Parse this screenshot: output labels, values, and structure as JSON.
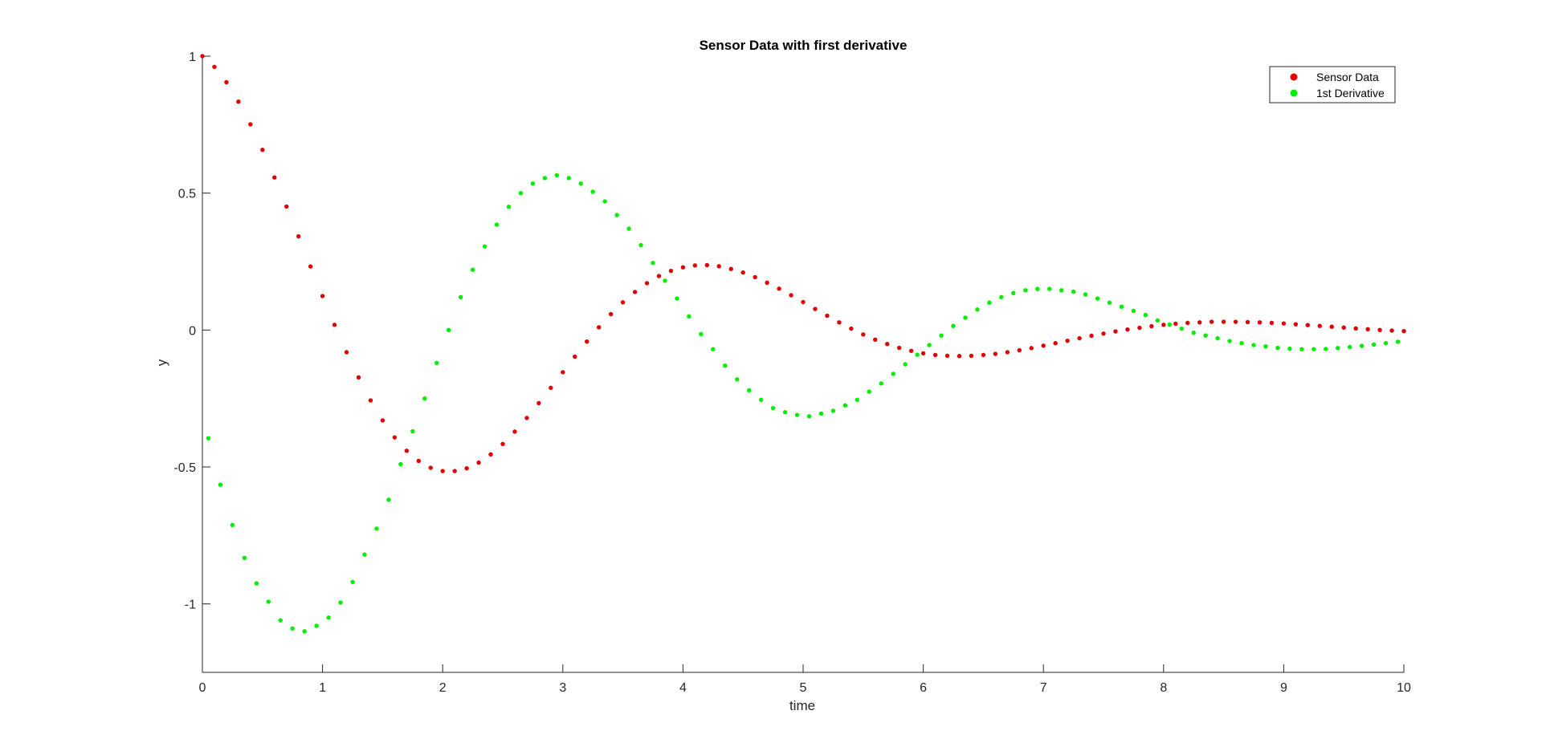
{
  "chart_data": {
    "type": "scatter",
    "title": "Sensor Data with first derivative",
    "xlabel": "time",
    "ylabel": "y",
    "xlim": [
      0,
      10
    ],
    "ylim": [
      -1.25,
      1
    ],
    "xticks": [
      0,
      1,
      2,
      3,
      4,
      5,
      6,
      7,
      8,
      9,
      10
    ],
    "yticks": [
      -1,
      -0.5,
      0,
      0.5,
      1
    ],
    "xtick_labels": [
      "0",
      "1",
      "2",
      "3",
      "4",
      "5",
      "6",
      "7",
      "8",
      "9",
      "10"
    ],
    "ytick_labels": [
      "-1",
      "-0.5",
      "0",
      "0.5",
      "1"
    ],
    "grid": false,
    "legend": {
      "position": "top-right"
    },
    "series": [
      {
        "name": "Sensor Data",
        "color": "#e00000",
        "x": [
          0,
          0.1,
          0.2,
          0.3,
          0.4,
          0.5,
          0.6,
          0.7,
          0.8,
          0.9,
          1,
          1.1,
          1.2,
          1.3,
          1.4,
          1.5,
          1.6,
          1.7,
          1.8,
          1.9,
          2,
          2.1,
          2.2,
          2.3,
          2.4,
          2.5,
          2.6,
          2.7,
          2.8,
          2.9,
          3,
          3.1,
          3.2,
          3.3,
          3.4,
          3.5,
          3.6,
          3.7,
          3.8,
          3.9,
          4,
          4.1,
          4.2,
          4.3,
          4.4,
          4.5,
          4.6,
          4.7,
          4.8,
          4.9,
          5,
          5.1,
          5.2,
          5.3,
          5.4,
          5.5,
          5.6,
          5.7,
          5.8,
          5.9,
          6,
          6.1,
          6.2,
          6.3,
          6.4,
          6.5,
          6.6,
          6.7,
          6.8,
          6.9,
          7,
          7.1,
          7.2,
          7.3,
          7.4,
          7.5,
          7.6,
          7.7,
          7.8,
          7.9,
          8,
          8.1,
          8.2,
          8.3,
          8.4,
          8.5,
          8.6,
          8.7,
          8.8,
          8.9,
          9,
          9.1,
          9.2,
          9.3,
          9.4,
          9.5,
          9.6,
          9.7,
          9.8,
          9.9,
          10
        ],
        "y": [
          1,
          0.961,
          0.905,
          0.834,
          0.751,
          0.658,
          0.557,
          0.451,
          0.342,
          0.232,
          0.124,
          0.019,
          -0.081,
          -0.173,
          -0.257,
          -0.33,
          -0.392,
          -0.441,
          -0.478,
          -0.503,
          -0.515,
          -0.515,
          -0.505,
          -0.484,
          -0.454,
          -0.416,
          -0.371,
          -0.321,
          -0.267,
          -0.211,
          -0.154,
          -0.097,
          -0.042,
          0.01,
          0.058,
          0.101,
          0.139,
          0.171,
          0.197,
          0.216,
          0.229,
          0.236,
          0.237,
          0.233,
          0.223,
          0.21,
          0.193,
          0.173,
          0.151,
          0.127,
          0.102,
          0.077,
          0.052,
          0.028,
          0.005,
          -0.016,
          -0.035,
          -0.051,
          -0.065,
          -0.076,
          -0.085,
          -0.091,
          -0.094,
          -0.095,
          -0.094,
          -0.091,
          -0.087,
          -0.081,
          -0.074,
          -0.066,
          -0.057,
          -0.048,
          -0.039,
          -0.03,
          -0.021,
          -0.013,
          -0.005,
          0.002,
          0.008,
          0.014,
          0.019,
          0.023,
          0.026,
          0.028,
          0.03,
          0.03,
          0.03,
          0.029,
          0.028,
          0.026,
          0.024,
          0.021,
          0.018,
          0.015,
          0.012,
          0.009,
          0.006,
          0.003,
          0.0,
          -0.002,
          -0.004
        ]
      },
      {
        "name": "1st Derivative",
        "color": "#00ee00",
        "x": [
          0.05,
          0.15,
          0.25,
          0.35,
          0.45,
          0.55,
          0.65,
          0.75,
          0.85,
          0.95,
          1.05,
          1.15,
          1.25,
          1.35,
          1.45,
          1.55,
          1.65,
          1.75,
          1.85,
          1.95,
          2.05,
          2.15,
          2.25,
          2.35,
          2.45,
          2.55,
          2.65,
          2.75,
          2.85,
          2.95,
          3.05,
          3.15,
          3.25,
          3.35,
          3.45,
          3.55,
          3.65,
          3.75,
          3.85,
          3.95,
          4.05,
          4.15,
          4.25,
          4.35,
          4.45,
          4.55,
          4.65,
          4.75,
          4.85,
          4.95,
          5.05,
          5.15,
          5.25,
          5.35,
          5.45,
          5.55,
          5.65,
          5.75,
          5.85,
          5.95,
          6.05,
          6.15,
          6.25,
          6.35,
          6.45,
          6.55,
          6.65,
          6.75,
          6.85,
          6.95,
          7.05,
          7.15,
          7.25,
          7.35,
          7.45,
          7.55,
          7.65,
          7.75,
          7.85,
          7.95,
          8.05,
          8.15,
          8.25,
          8.35,
          8.45,
          8.55,
          8.65,
          8.75,
          8.85,
          8.95,
          9.05,
          9.15,
          9.25,
          9.35,
          9.45,
          9.55,
          9.65,
          9.75,
          9.85,
          9.95
        ],
        "y": [
          -0.395,
          -0.565,
          -0.712,
          -0.832,
          -0.925,
          -0.992,
          -1.06,
          -1.09,
          -1.1,
          -1.08,
          -1.05,
          -0.995,
          -0.92,
          -0.82,
          -0.725,
          -0.62,
          -0.49,
          -0.37,
          -0.25,
          -0.12,
          0.0,
          0.12,
          0.22,
          0.305,
          0.385,
          0.45,
          0.5,
          0.535,
          0.555,
          0.565,
          0.555,
          0.535,
          0.505,
          0.47,
          0.42,
          0.37,
          0.31,
          0.245,
          0.18,
          0.115,
          0.05,
          -0.015,
          -0.07,
          -0.13,
          -0.18,
          -0.22,
          -0.255,
          -0.285,
          -0.3,
          -0.31,
          -0.315,
          -0.305,
          -0.295,
          -0.275,
          -0.255,
          -0.225,
          -0.195,
          -0.16,
          -0.125,
          -0.09,
          -0.055,
          -0.02,
          0.015,
          0.045,
          0.075,
          0.1,
          0.12,
          0.135,
          0.145,
          0.15,
          0.15,
          0.145,
          0.14,
          0.13,
          0.115,
          0.1,
          0.085,
          0.07,
          0.055,
          0.035,
          0.02,
          0.005,
          -0.01,
          -0.02,
          -0.03,
          -0.04,
          -0.048,
          -0.055,
          -0.06,
          -0.065,
          -0.068,
          -0.07,
          -0.07,
          -0.069,
          -0.066,
          -0.062,
          -0.058,
          -0.053,
          -0.048,
          -0.043
        ]
      }
    ]
  }
}
